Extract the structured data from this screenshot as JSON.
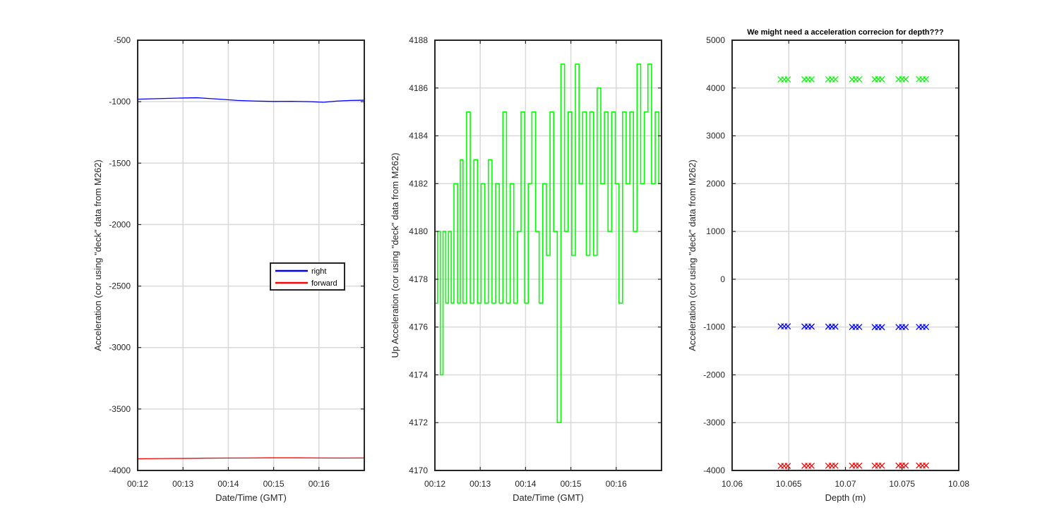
{
  "chart_data": [
    {
      "type": "line",
      "xlabel": "Date/Time (GMT)",
      "ylabel": "Acceleration (cor using \"deck\" data from M262)",
      "xlim": [
        0,
        5
      ],
      "ylim": [
        -4000,
        -500
      ],
      "xticks": [
        0,
        1,
        2,
        3,
        4
      ],
      "xtick_labels": [
        "00:12",
        "00:13",
        "00:14",
        "00:15",
        "00:16"
      ],
      "yticks": [
        -500,
        -1000,
        -1500,
        -2000,
        -2500,
        -3000,
        -3500,
        -4000
      ],
      "grid": true,
      "legend": {
        "position": "middle-right"
      },
      "series": [
        {
          "name": "right",
          "color": "#0000ff",
          "x": [
            0,
            0.5,
            1.0,
            1.3,
            1.6,
            1.9,
            2.2,
            2.6,
            3.0,
            3.4,
            3.8,
            4.1,
            4.4,
            4.7,
            5.0
          ],
          "y": [
            -980,
            -975,
            -970,
            -968,
            -975,
            -982,
            -990,
            -995,
            -998,
            -997,
            -1000,
            -1005,
            -995,
            -990,
            -988
          ]
        },
        {
          "name": "forward",
          "color": "#ff0000",
          "x": [
            0,
            0.5,
            1.0,
            1.5,
            2.0,
            2.5,
            3.0,
            3.5,
            4.0,
            4.5,
            5.0
          ],
          "y": [
            -3905,
            -3903,
            -3902,
            -3900,
            -3899,
            -3898,
            -3897,
            -3897,
            -3898,
            -3899,
            -3898
          ]
        }
      ]
    },
    {
      "type": "line",
      "xlabel": "Date/Time (GMT)",
      "ylabel": "Up Acceleration (cor using \"deck\" data from M262)",
      "xlim": [
        0,
        5
      ],
      "ylim": [
        4170,
        4188
      ],
      "xticks": [
        0,
        1,
        2,
        3,
        4
      ],
      "xtick_labels": [
        "00:12",
        "00:13",
        "00:14",
        "00:15",
        "00:16"
      ],
      "yticks": [
        4170,
        4172,
        4174,
        4176,
        4178,
        4180,
        4182,
        4184,
        4186,
        4188
      ],
      "grid": true,
      "series": [
        {
          "color": "#00ff00",
          "x": [
            0,
            0.06,
            0.12,
            0.18,
            0.24,
            0.3,
            0.36,
            0.42,
            0.5,
            0.56,
            0.62,
            0.7,
            0.78,
            0.86,
            0.94,
            1.02,
            1.1,
            1.18,
            1.26,
            1.34,
            1.42,
            1.5,
            1.58,
            1.66,
            1.74,
            1.82,
            1.9,
            1.98,
            2.06,
            2.14,
            2.22,
            2.3,
            2.38,
            2.46,
            2.54,
            2.62,
            2.7,
            2.78,
            2.86,
            2.94,
            3.02,
            3.1,
            3.18,
            3.26,
            3.34,
            3.42,
            3.5,
            3.58,
            3.66,
            3.74,
            3.82,
            3.9,
            3.98,
            4.06,
            4.14,
            4.22,
            4.3,
            4.38,
            4.46,
            4.54,
            4.62,
            4.7,
            4.78,
            4.86,
            4.94,
            5.0
          ],
          "y": [
            4177,
            4180,
            4174,
            4180,
            4177,
            4180,
            4177,
            4182,
            4177,
            4183,
            4177,
            4185,
            4177,
            4183,
            4177,
            4182,
            4177,
            4183,
            4177,
            4182,
            4177,
            4185,
            4177,
            4182,
            4177,
            4180,
            4185,
            4177,
            4182,
            4185,
            4180,
            4177,
            4182,
            4179,
            4185,
            4180,
            4172,
            4187,
            4180,
            4185,
            4179,
            4187,
            4182,
            4185,
            4179,
            4185,
            4179,
            4186,
            4182,
            4185,
            4180,
            4185,
            4182,
            4177,
            4185,
            4182,
            4185,
            4180,
            4187,
            4182,
            4185,
            4187,
            4182,
            4185,
            4182,
            4185
          ]
        }
      ]
    },
    {
      "type": "scatter",
      "title": "We might need a acceleration correcion for depth???",
      "xlabel": "Depth (m)",
      "ylabel": "Acceleration (cor using \"deck\" data from M262)",
      "xlim": [
        10.06,
        10.08
      ],
      "ylim": [
        -4000,
        5000
      ],
      "xticks": [
        10.06,
        10.065,
        10.07,
        10.075,
        10.08
      ],
      "xtick_labels": [
        "10.06",
        "10.065",
        "10.07",
        "10.075",
        "10.08"
      ],
      "yticks": [
        5000,
        4000,
        3000,
        2000,
        1000,
        0,
        -1000,
        -2000,
        -3000,
        -4000
      ],
      "grid": true,
      "marker": "x",
      "x": [
        10.0646,
        10.0667,
        10.0688,
        10.0709,
        10.0729,
        10.075,
        10.0768
      ],
      "series": [
        {
          "color": "#00ff00",
          "y": [
            4180,
            4181,
            4182,
            4182,
            4183,
            4184,
            4184
          ]
        },
        {
          "color": "#0000ff",
          "y": [
            -985,
            -990,
            -992,
            -998,
            -1003,
            -1000,
            -998
          ]
        },
        {
          "color": "#ff0000",
          "y": [
            -3905,
            -3903,
            -3901,
            -3900,
            -3899,
            -3898,
            -3898
          ]
        }
      ]
    }
  ]
}
